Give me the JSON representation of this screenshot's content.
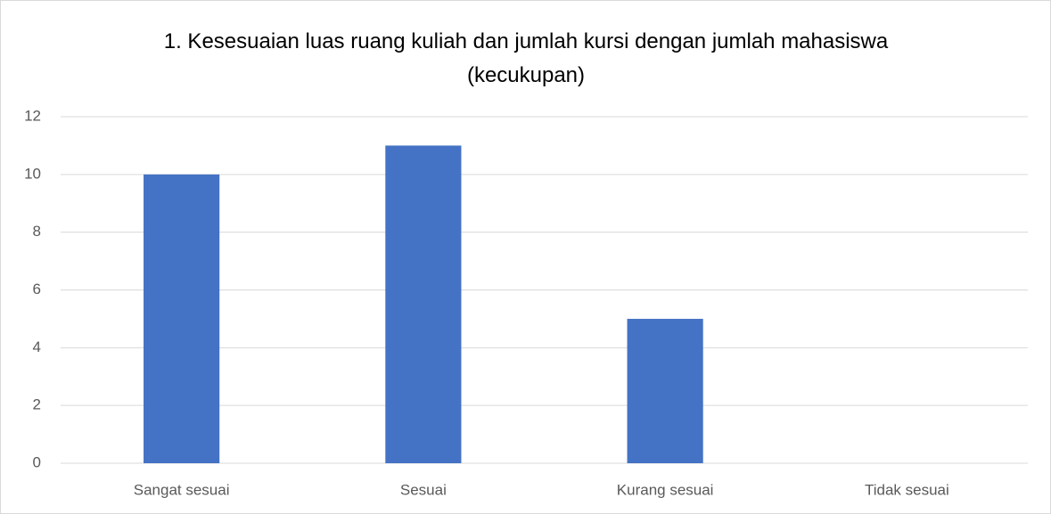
{
  "chart_data": {
    "type": "bar",
    "title": "1. Kesesuaian luas ruang kuliah dan jumlah kursi dengan jumlah mahasiswa (kecukupan)",
    "categories": [
      "Sangat sesuai",
      "Sesuai",
      "Kurang sesuai",
      "Tidak sesuai"
    ],
    "values": [
      10,
      11,
      5,
      0
    ],
    "color": "#4472c4",
    "ylim": [
      0,
      12
    ],
    "yticks": [
      0,
      2,
      4,
      6,
      8,
      10,
      12
    ],
    "grid": true
  }
}
